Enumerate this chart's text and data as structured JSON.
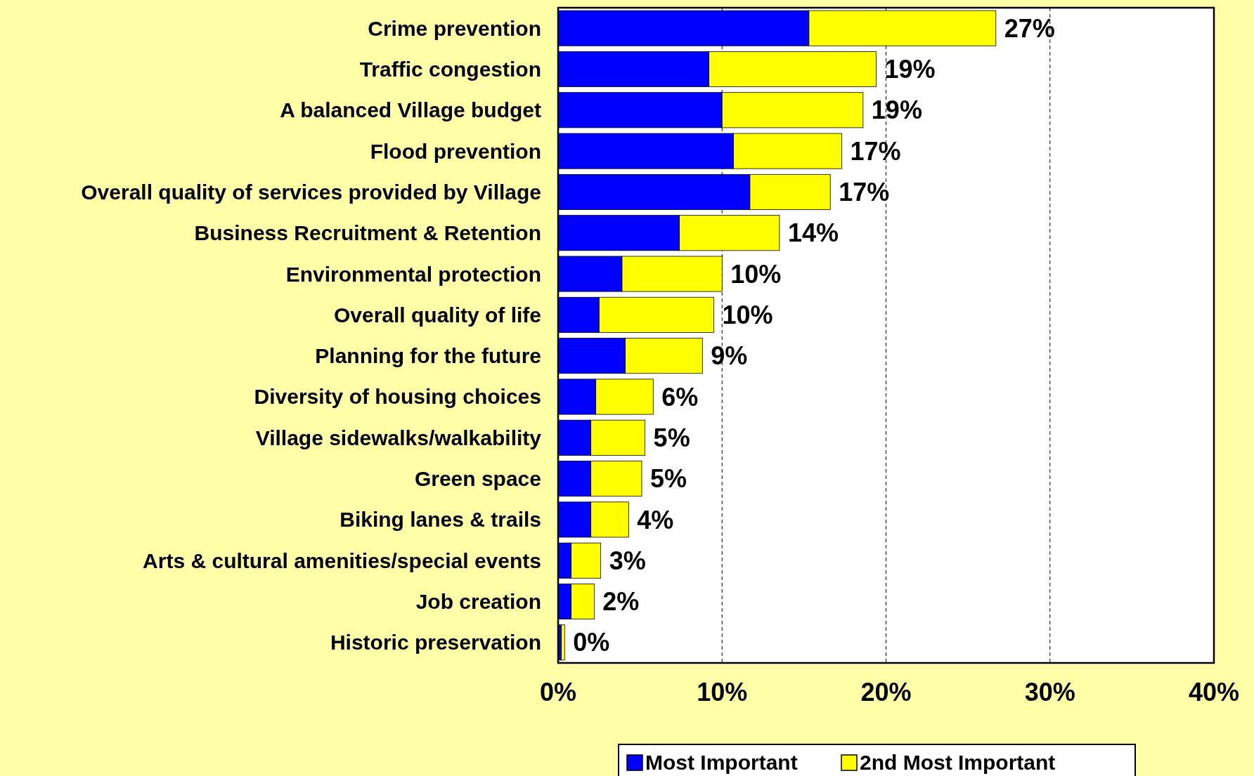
{
  "chart_data": {
    "type": "bar",
    "orientation": "horizontal",
    "stacked": true,
    "categories": [
      "Crime prevention",
      "Traffic congestion",
      "A balanced Village budget",
      "Flood prevention",
      "Overall quality of services provided by Village",
      "Business Recruitment & Retention",
      "Environmental protection",
      "Overall quality of life",
      "Planning for the future",
      "Diversity of housing choices",
      "Village sidewalks/walkability",
      "Green space",
      "Biking lanes & trails",
      "Arts & cultural amenities/special events",
      "Job creation",
      "Historic preservation"
    ],
    "series": [
      {
        "name": "Most Important",
        "color": "#0000ff",
        "values": [
          15.3,
          9.2,
          10.0,
          10.7,
          11.7,
          7.4,
          3.9,
          2.5,
          4.1,
          2.3,
          2.0,
          2.0,
          2.0,
          0.8,
          0.8,
          0.2
        ]
      },
      {
        "name": "2nd Most Important",
        "color": "#ffff00",
        "values": [
          11.4,
          10.2,
          8.6,
          6.6,
          4.9,
          6.1,
          6.1,
          7.0,
          4.7,
          3.5,
          3.3,
          3.1,
          2.3,
          1.8,
          1.4,
          0.2
        ]
      }
    ],
    "totals": [
      "27%",
      "19%",
      "19%",
      "17%",
      "17%",
      "14%",
      "10%",
      "10%",
      "9%",
      "6%",
      "5%",
      "5%",
      "4%",
      "3%",
      "2%",
      "0%"
    ],
    "xlim": [
      0,
      40
    ],
    "xticks": [
      {
        "value": 0,
        "label": "0%"
      },
      {
        "value": 10,
        "label": "10%"
      },
      {
        "value": 20,
        "label": "20%"
      },
      {
        "value": 30,
        "label": "30%"
      },
      {
        "value": 40,
        "label": "40%"
      }
    ],
    "grid": "x",
    "legend": "bottom"
  }
}
